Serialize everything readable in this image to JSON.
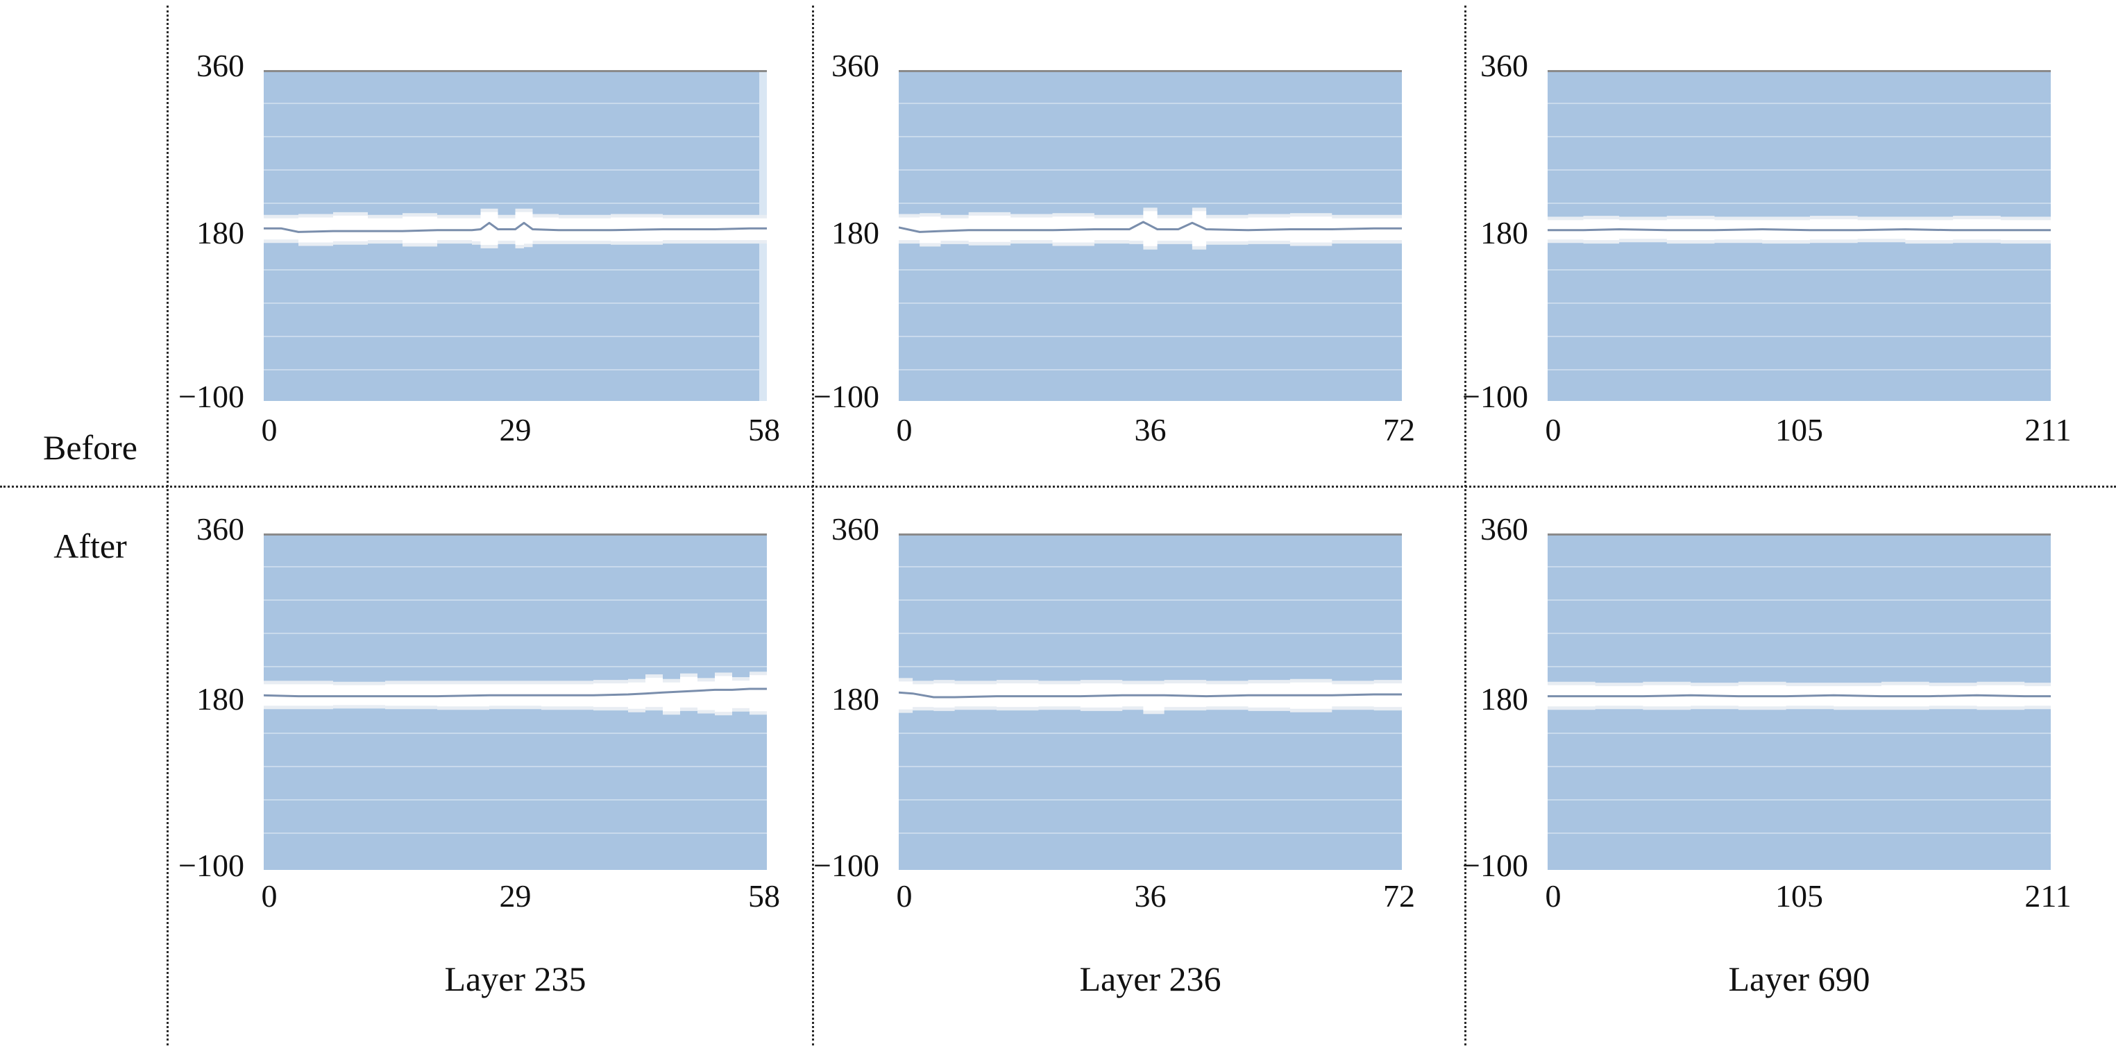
{
  "figure": {
    "row_labels": [
      "Before",
      "After"
    ],
    "column_captions": [
      "Layer 235",
      "Layer 236",
      "Layer 690"
    ],
    "y_tick_labels": [
      "360",
      "180",
      "−100"
    ]
  },
  "colors": {
    "plot_fill": "#a9c4e1",
    "band_fill": "#ffffff",
    "band_fringe": "#e8edf3",
    "trace_line": "#7a8eac",
    "plot_top_border": "#8a8a8a",
    "gridline": "rgba(255,255,255,0.38)",
    "right_edge_strip": "#d9e6f3",
    "separator": "#2b2b2b",
    "text": "#111111"
  },
  "chart_data": {
    "type": "area",
    "title": "",
    "description": "2x3 grid of angle-trace plots (value near 180) before and after, for three layers. Blue region is excluded range; white band is the envelope around the trace.",
    "grid": "faint horizontal gridlines",
    "y_axis": {
      "ticks": [
        360,
        180,
        -100
      ],
      "tick_labels": [
        "360",
        "180",
        "−100"
      ],
      "range": [
        -100,
        360
      ]
    },
    "rows": [
      "Before",
      "After"
    ],
    "columns": [
      "Layer 235",
      "Layer 236",
      "Layer 690"
    ],
    "panels": [
      {
        "row": "Before",
        "layer": 235,
        "x_max": 58,
        "x_ticks": [
          0,
          29,
          58
        ],
        "x_tick_labels": [
          "0",
          "29",
          "58"
        ],
        "right_edge_artifact": true,
        "series": {
          "x": [
            0,
            2,
            4,
            8,
            12,
            16,
            20,
            24,
            25,
            26,
            27,
            29,
            30,
            31,
            34,
            40,
            46,
            52,
            56,
            58
          ],
          "line": [
            185,
            185,
            181,
            182,
            182,
            182,
            183,
            183,
            184,
            191,
            184,
            184,
            191,
            184,
            183,
            183,
            184,
            184,
            185,
            185
          ],
          "upper": [
            196,
            196,
            197,
            199,
            196,
            198,
            196,
            196,
            203,
            203,
            196,
            203,
            203,
            197,
            196,
            197,
            196,
            196,
            196,
            196
          ],
          "lower": [
            169,
            169,
            164,
            166,
            168,
            163,
            168,
            166,
            160,
            160,
            167,
            160,
            162,
            167,
            167,
            166,
            168,
            168,
            168,
            168
          ]
        }
      },
      {
        "row": "Before",
        "layer": 236,
        "x_max": 72,
        "x_ticks": [
          0,
          36,
          72
        ],
        "x_tick_labels": [
          "0",
          "36",
          "72"
        ],
        "right_edge_artifact": false,
        "series": {
          "x": [
            0,
            3,
            6,
            10,
            16,
            22,
            28,
            33,
            35,
            37,
            40,
            42,
            44,
            50,
            56,
            62,
            68,
            72
          ],
          "line": [
            186,
            181,
            182,
            183,
            183,
            183,
            184,
            184,
            192,
            184,
            184,
            191,
            184,
            183,
            184,
            184,
            185,
            185
          ],
          "upper": [
            197,
            198,
            196,
            199,
            197,
            198,
            196,
            196,
            204,
            196,
            196,
            204,
            196,
            197,
            198,
            196,
            196,
            196
          ],
          "lower": [
            168,
            163,
            167,
            165,
            168,
            164,
            168,
            167,
            158,
            167,
            167,
            158,
            166,
            167,
            164,
            168,
            168,
            168
          ]
        }
      },
      {
        "row": "Before",
        "layer": 690,
        "x_max": 211,
        "x_ticks": [
          0,
          105,
          211
        ],
        "x_tick_labels": [
          "0",
          "105",
          "211"
        ],
        "right_edge_artifact": false,
        "series": {
          "x": [
            0,
            15,
            30,
            50,
            70,
            90,
            110,
            130,
            150,
            170,
            190,
            211
          ],
          "line": [
            183,
            183,
            184,
            183,
            183,
            184,
            183,
            183,
            184,
            183,
            183,
            183
          ],
          "upper": [
            194,
            195,
            194,
            195,
            194,
            194,
            195,
            194,
            194,
            195,
            194,
            194
          ],
          "lower": [
            169,
            168,
            170,
            168,
            169,
            168,
            169,
            170,
            168,
            169,
            168,
            169
          ]
        }
      },
      {
        "row": "After",
        "layer": 235,
        "x_max": 58,
        "x_ticks": [
          0,
          29,
          58
        ],
        "x_tick_labels": [
          "0",
          "29",
          "58"
        ],
        "right_edge_artifact": false,
        "series": {
          "x": [
            0,
            4,
            8,
            14,
            20,
            26,
            32,
            38,
            42,
            44,
            46,
            48,
            50,
            52,
            54,
            56,
            58
          ],
          "line": [
            184,
            183,
            183,
            183,
            183,
            184,
            184,
            184,
            185,
            186,
            187,
            188,
            189,
            190,
            190,
            191,
            191
          ],
          "upper": [
            196,
            196,
            195,
            196,
            196,
            196,
            196,
            197,
            198,
            203,
            198,
            204,
            199,
            205,
            200,
            206,
            200
          ],
          "lower": [
            169,
            169,
            170,
            169,
            168,
            169,
            168,
            167,
            164,
            167,
            160,
            166,
            162,
            159,
            165,
            160,
            166
          ]
        }
      },
      {
        "row": "After",
        "layer": 236,
        "x_max": 72,
        "x_ticks": [
          0,
          36,
          72
        ],
        "x_tick_labels": [
          "0",
          "36",
          "72"
        ],
        "right_edge_artifact": false,
        "series": {
          "x": [
            0,
            2,
            5,
            8,
            14,
            20,
            26,
            32,
            35,
            38,
            44,
            50,
            56,
            62,
            68,
            72
          ],
          "line": [
            187,
            186,
            182,
            182,
            183,
            183,
            183,
            184,
            184,
            184,
            183,
            184,
            184,
            184,
            185,
            185
          ],
          "upper": [
            199,
            196,
            197,
            196,
            197,
            196,
            197,
            196,
            196,
            197,
            196,
            197,
            198,
            196,
            197,
            197
          ],
          "lower": [
            163,
            167,
            166,
            168,
            167,
            168,
            166,
            168,
            161,
            167,
            168,
            166,
            164,
            168,
            167,
            167
          ]
        }
      },
      {
        "row": "After",
        "layer": 690,
        "x_max": 211,
        "x_ticks": [
          0,
          105,
          211
        ],
        "x_tick_labels": [
          "0",
          "105",
          "211"
        ],
        "right_edge_artifact": false,
        "series": {
          "x": [
            0,
            20,
            40,
            60,
            80,
            100,
            120,
            140,
            160,
            180,
            200,
            211
          ],
          "line": [
            183,
            183,
            183,
            184,
            183,
            183,
            184,
            183,
            183,
            184,
            183,
            183
          ],
          "upper": [
            195,
            194,
            195,
            194,
            195,
            194,
            194,
            195,
            194,
            195,
            194,
            194
          ],
          "lower": [
            168,
            169,
            168,
            169,
            168,
            169,
            168,
            168,
            169,
            168,
            169,
            168
          ]
        }
      }
    ]
  }
}
